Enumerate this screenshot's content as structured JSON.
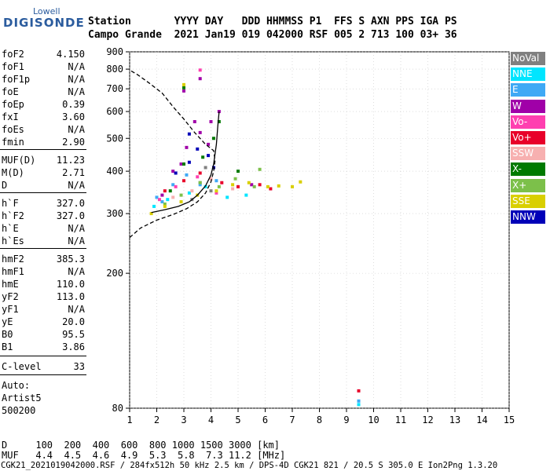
{
  "logo": {
    "line1": "Lowell",
    "line2": "DIGISONDE"
  },
  "header": {
    "row1": "Station       YYYY DAY   DDD HHMMSS P1  FFS S AXN PPS IGA PS",
    "row2": "Campo Grande  2021 Jan19 019 042000 RSF 005 2 713 100 03+ 36"
  },
  "params": [
    {
      "k": "foF2",
      "v": "4.150"
    },
    {
      "k": "foF1",
      "v": "N/A"
    },
    {
      "k": "foF1p",
      "v": "N/A"
    },
    {
      "k": "foE",
      "v": "N/A"
    },
    {
      "k": "foEp",
      "v": "0.39"
    },
    {
      "k": "fxI",
      "v": "3.60"
    },
    {
      "k": "foEs",
      "v": "N/A"
    },
    {
      "k": "fmin",
      "v": "2.90"
    },
    {
      "k": "MUF(D)",
      "v": "11.23"
    },
    {
      "k": "M(D)",
      "v": "2.71"
    },
    {
      "k": "D",
      "v": "N/A"
    },
    {
      "k": "h`F",
      "v": "327.0"
    },
    {
      "k": "h`F2",
      "v": "327.0"
    },
    {
      "k": "h`E",
      "v": "N/A"
    },
    {
      "k": "h`Es",
      "v": "N/A"
    },
    {
      "k": "hmF2",
      "v": "385.3"
    },
    {
      "k": "hmF1",
      "v": "N/A"
    },
    {
      "k": "hmE",
      "v": "110.0"
    },
    {
      "k": "yF2",
      "v": "113.0"
    },
    {
      "k": "yF1",
      "v": "N/A"
    },
    {
      "k": "yE",
      "v": "20.0"
    },
    {
      "k": "B0",
      "v": "95.5"
    },
    {
      "k": "B1",
      "v": "3.86"
    },
    {
      "k": "C-level",
      "v": "33"
    }
  ],
  "notes": {
    "auto": "Auto:",
    "artist": "Artist5",
    "ver": "500200"
  },
  "footer": {
    "line1": "D     100  200  400  600  800 1000 1500 3000 [km]",
    "line2": "MUF   4.4  4.5  4.6  4.9  5.3  5.8  7.3 11.2 [MHz]",
    "line3": "CGK21_2021019042000.RSF / 284fx512h 50 kHz 2.5 km / DPS-4D CGK21 821 / 20.5 S 305.0 E Ion2Png 1.3.20"
  },
  "legend": [
    {
      "label": "NoVal",
      "color": "#808080"
    },
    {
      "label": "NNE",
      "color": "#00e5ff"
    },
    {
      "label": "E",
      "color": "#3fa9f5"
    },
    {
      "label": "W",
      "color": "#a000a8"
    },
    {
      "label": "Vo-",
      "color": "#ff3fb0"
    },
    {
      "label": "Vo+",
      "color": "#e8002a"
    },
    {
      "label": "SSW",
      "color": "#f7b0b0"
    },
    {
      "label": "X-",
      "color": "#007a00"
    },
    {
      "label": "X+",
      "color": "#7cc04a"
    },
    {
      "label": "SSE",
      "color": "#d9cf00"
    },
    {
      "label": "NNW",
      "color": "#0000b8"
    }
  ],
  "chart_data": {
    "type": "scatter",
    "xlabel": "",
    "ylabel": "",
    "xlim": [
      1,
      15
    ],
    "ylim": [
      80,
      900
    ],
    "y_scale": "log",
    "xticks": [
      1,
      2,
      3,
      4,
      5,
      6,
      7,
      8,
      9,
      10,
      11,
      12,
      13,
      14,
      15
    ],
    "yticks": [
      80,
      200,
      300,
      400,
      500,
      600,
      700,
      800,
      900
    ],
    "series": [
      {
        "name": "NoVal",
        "color": "#808080",
        "points": [
          [
            3.3,
            330
          ],
          [
            3.6,
            370
          ],
          [
            4.0,
            350
          ],
          [
            3.8,
            410
          ]
        ]
      },
      {
        "name": "NNE",
        "color": "#00e5ff",
        "points": [
          [
            1.9,
            315
          ],
          [
            2.4,
            330
          ],
          [
            3.2,
            345
          ],
          [
            3.8,
            360
          ],
          [
            4.6,
            335
          ],
          [
            5.3,
            340
          ],
          [
            9.45,
            82
          ]
        ]
      },
      {
        "name": "E",
        "color": "#3fa9f5",
        "points": [
          [
            2.0,
            335
          ],
          [
            2.6,
            365
          ],
          [
            3.1,
            390
          ],
          [
            3.6,
            365
          ],
          [
            4.2,
            375
          ],
          [
            2.2,
            325
          ],
          [
            9.45,
            84
          ]
        ]
      },
      {
        "name": "W",
        "color": "#a000a8",
        "points": [
          [
            2.2,
            340
          ],
          [
            2.6,
            400
          ],
          [
            2.9,
            420
          ],
          [
            3.1,
            470
          ],
          [
            3.4,
            560
          ],
          [
            3.6,
            520
          ],
          [
            4.0,
            560
          ],
          [
            4.3,
            600
          ],
          [
            3.9,
            480
          ],
          [
            3.6,
            750
          ],
          [
            3.0,
            690
          ],
          [
            5.5,
            365
          ]
        ]
      },
      {
        "name": "Vo-",
        "color": "#ff3fb0",
        "points": [
          [
            2.1,
            330
          ],
          [
            2.7,
            360
          ],
          [
            3.5,
            385
          ],
          [
            4.2,
            345
          ],
          [
            3.6,
            795
          ]
        ]
      },
      {
        "name": "Vo+",
        "color": "#e8002a",
        "points": [
          [
            2.3,
            350
          ],
          [
            3.0,
            375
          ],
          [
            3.6,
            395
          ],
          [
            4.4,
            370
          ],
          [
            5.0,
            360
          ],
          [
            5.8,
            365
          ],
          [
            6.2,
            355
          ],
          [
            9.45,
            90
          ]
        ]
      },
      {
        "name": "SSW",
        "color": "#f7b0b0",
        "points": [
          [
            2.6,
            335
          ],
          [
            3.3,
            350
          ],
          [
            4.0,
            380
          ],
          [
            4.8,
            355
          ]
        ]
      },
      {
        "name": "X-",
        "color": "#007a00",
        "points": [
          [
            2.5,
            350
          ],
          [
            3.0,
            420
          ],
          [
            3.7,
            440
          ],
          [
            4.1,
            500
          ],
          [
            4.3,
            560
          ],
          [
            5.0,
            400
          ],
          [
            3.0,
            705
          ]
        ]
      },
      {
        "name": "X+",
        "color": "#7cc04a",
        "points": [
          [
            2.3,
            320
          ],
          [
            2.9,
            340
          ],
          [
            3.6,
            370
          ],
          [
            4.3,
            360
          ],
          [
            4.9,
            380
          ],
          [
            5.6,
            360
          ],
          [
            5.8,
            405
          ]
        ]
      },
      {
        "name": "SSE",
        "color": "#d9cf00",
        "points": [
          [
            1.8,
            300
          ],
          [
            2.3,
            315
          ],
          [
            2.9,
            325
          ],
          [
            3.5,
            340
          ],
          [
            4.2,
            350
          ],
          [
            4.8,
            365
          ],
          [
            5.4,
            370
          ],
          [
            6.1,
            360
          ],
          [
            6.5,
            362
          ],
          [
            7.0,
            360
          ],
          [
            7.3,
            372
          ],
          [
            3.0,
            720
          ]
        ]
      },
      {
        "name": "NNW",
        "color": "#0000b8",
        "points": [
          [
            2.7,
            395
          ],
          [
            3.2,
            425
          ],
          [
            3.5,
            465
          ],
          [
            3.9,
            445
          ],
          [
            4.1,
            410
          ],
          [
            3.2,
            515
          ]
        ]
      }
    ],
    "traces": [
      {
        "style": "dashed",
        "color": "#000000",
        "points": [
          [
            1.0,
            255
          ],
          [
            1.4,
            272
          ],
          [
            2.0,
            287
          ],
          [
            2.6,
            298
          ],
          [
            3.1,
            310
          ],
          [
            3.5,
            325
          ],
          [
            3.8,
            345
          ],
          [
            4.0,
            372
          ],
          [
            4.1,
            400
          ],
          [
            4.15,
            430
          ],
          [
            4.1,
            460
          ],
          [
            3.8,
            480
          ],
          [
            3.4,
            520
          ],
          [
            3.0,
            570
          ],
          [
            2.6,
            620
          ],
          [
            2.2,
            680
          ],
          [
            1.7,
            730
          ],
          [
            1.3,
            770
          ],
          [
            1.0,
            795
          ]
        ]
      },
      {
        "style": "solid",
        "color": "#000000",
        "points": [
          [
            1.8,
            302
          ],
          [
            2.3,
            308
          ],
          [
            2.8,
            315
          ],
          [
            3.2,
            325
          ],
          [
            3.5,
            340
          ],
          [
            3.8,
            362
          ],
          [
            4.0,
            390
          ],
          [
            4.1,
            420
          ],
          [
            4.2,
            480
          ],
          [
            4.25,
            540
          ],
          [
            4.3,
            600
          ]
        ]
      }
    ]
  }
}
